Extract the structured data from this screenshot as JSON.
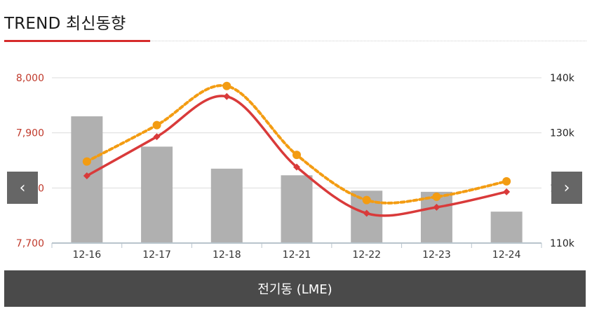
{
  "header": {
    "title": "TREND 최신동향"
  },
  "nav": {
    "prev_glyph": "‹",
    "next_glyph": "›"
  },
  "footer": {
    "label": "전기동 (LME)"
  },
  "colors": {
    "accent": "#d62b2b",
    "line1": "#d93a3a",
    "line2": "#f39c12",
    "bar": "#b0b0b0",
    "left_axis": "#c0392b"
  },
  "chart_data": {
    "type": "bar",
    "categories": [
      "12-16",
      "12-17",
      "12-18",
      "12-21",
      "12-22",
      "12-23",
      "12-24"
    ],
    "left_axis": {
      "ticks": [
        "7,700",
        "7,800",
        "7,900",
        "8,000"
      ],
      "ylim": [
        7700,
        8000
      ]
    },
    "right_axis": {
      "ticks": [
        "110k",
        "120k",
        "130k",
        "140k"
      ],
      "ylim": [
        110,
        140
      ]
    },
    "series": [
      {
        "type": "bar",
        "axis": "right",
        "values": [
          133,
          127.5,
          123.5,
          122.3,
          119.5,
          119.3,
          115.7
        ]
      },
      {
        "type": "line",
        "axis": "left",
        "marker": "diamond",
        "values": [
          7822,
          7893,
          7966,
          7838,
          7754,
          7765,
          7793
        ]
      },
      {
        "type": "line",
        "axis": "left",
        "style": "dotted",
        "marker": "circle",
        "values": [
          7848,
          7914,
          7985,
          7860,
          7778,
          7784,
          7812
        ]
      }
    ],
    "grid": true
  }
}
